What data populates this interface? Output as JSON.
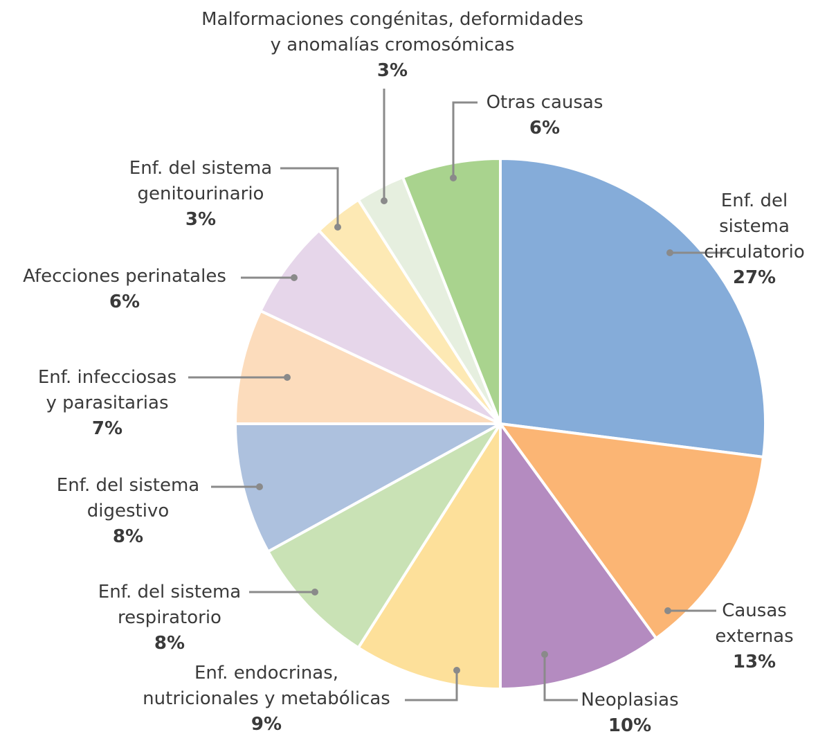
{
  "chart_data": {
    "type": "pie",
    "categories": [
      "Enf. del sistema\ncirculatorio",
      "Causas\nexternas",
      "Neoplasias",
      "Enf. endocrinas,\nnutricionales y metabólicas",
      "Enf. del sistema\nrespiratorio",
      "Enf. del sistema\ndigestivo",
      "Enf. infecciosas\ny parasitarias",
      "Afecciones perinatales",
      "Enf. del sistema\ngenitourinario",
      "Malformaciones congénitas, deformidades\ny anomalías cromosómicas",
      "Otras causas"
    ],
    "values": [
      27,
      13,
      10,
      9,
      8,
      8,
      7,
      6,
      3,
      3,
      6
    ],
    "value_labels": [
      "27%",
      "13%",
      "10%",
      "9%",
      "8%",
      "8%",
      "7%",
      "6%",
      "3%",
      "3%",
      "6%"
    ],
    "colors": [
      "#85acd9",
      "#fbb574",
      "#b48bc0",
      "#fde09a",
      "#c9e2b5",
      "#adc1de",
      "#fcdcbc",
      "#e6d6ea",
      "#fde9b4",
      "#e6efdf",
      "#a9d38e"
    ]
  }
}
